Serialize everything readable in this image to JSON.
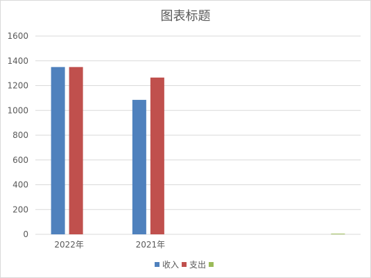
{
  "chart_data": {
    "type": "bar",
    "title": "图表标题",
    "categories": [
      "2022年",
      "2021年",
      "",
      ""
    ],
    "series": [
      {
        "name": "收入",
        "color": "#4F81BD",
        "values": [
          1350,
          1085,
          null,
          null
        ]
      },
      {
        "name": "支出",
        "color": "#C0504D",
        "values": [
          1350,
          1265,
          null,
          null
        ]
      },
      {
        "name": "",
        "color": "#9BBB59",
        "values": [
          null,
          null,
          null,
          5
        ]
      }
    ],
    "ylim": [
      0,
      1600
    ],
    "yticks": [
      0,
      200,
      400,
      600,
      800,
      1000,
      1200,
      1400,
      1600
    ],
    "xlabel": "",
    "ylabel": "",
    "grid": true,
    "gridColor": "#d9d9d9",
    "legend": "bottom"
  }
}
